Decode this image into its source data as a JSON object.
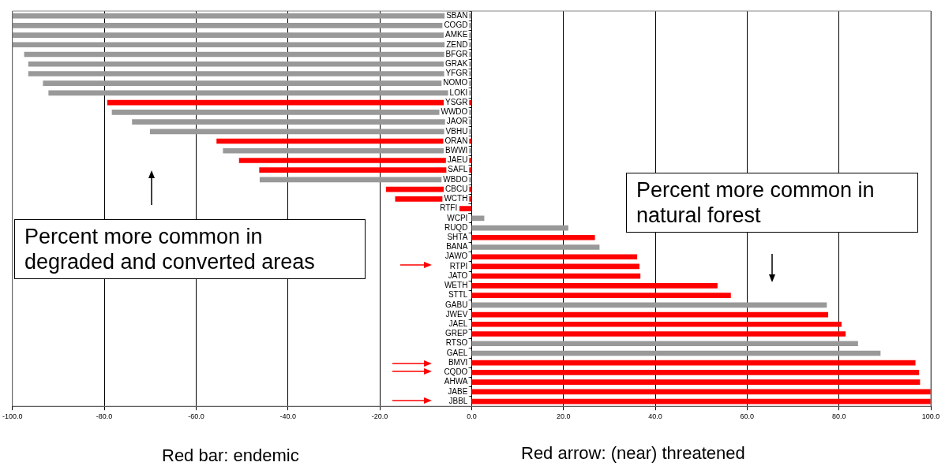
{
  "chart_data": {
    "type": "bar",
    "orientation": "horizontal",
    "categories": [
      "SBAN",
      "COGD",
      "AMKE",
      "ZEND",
      "BFGR",
      "GRAK",
      "YFGR",
      "NOMO",
      "LOKI",
      "YSGR",
      "WWDO",
      "JAOR",
      "VBHU",
      "ORAN",
      "BWWI",
      "JAEU",
      "SAFL",
      "WBDO",
      "CBCU",
      "WCTH",
      "RTFI",
      "WCPI",
      "RUQD",
      "SHTA",
      "BANA",
      "JAWO",
      "RTPI",
      "JATO",
      "WETH",
      "STTL",
      "GABU",
      "JWEV",
      "JAEL",
      "GREP",
      "RTSO",
      "GAEL",
      "BMVI",
      "CQDO",
      "AHWA",
      "JABE",
      "JBBL"
    ],
    "values": [
      -100,
      -100,
      -100,
      -100,
      -97.4,
      -96.5,
      -96.5,
      -93.3,
      -92.1,
      -79.3,
      -78.3,
      -73.9,
      -70,
      -55.5,
      -54.1,
      -50.6,
      -46.2,
      -46.1,
      -18.6,
      -16.6,
      -2.6,
      2.7,
      21,
      26.8,
      27.8,
      36,
      36.5,
      36.7,
      53.5,
      56.4,
      77.3,
      77.6,
      80.5,
      81.4,
      84.1,
      89,
      96.6,
      97.4,
      97.6,
      100,
      100
    ],
    "colors": [
      "#999999",
      "#999999",
      "#999999",
      "#999999",
      "#999999",
      "#999999",
      "#999999",
      "#999999",
      "#999999",
      "#ff0000",
      "#999999",
      "#999999",
      "#999999",
      "#ff0000",
      "#999999",
      "#ff0000",
      "#ff0000",
      "#999999",
      "#ff0000",
      "#ff0000",
      "#ff0000",
      "#999999",
      "#999999",
      "#ff0000",
      "#999999",
      "#ff0000",
      "#ff0000",
      "#ff0000",
      "#ff0000",
      "#ff0000",
      "#999999",
      "#ff0000",
      "#ff0000",
      "#ff0000",
      "#999999",
      "#999999",
      "#ff0000",
      "#ff0000",
      "#ff0000",
      "#ff0000",
      "#ff0000"
    ],
    "xlim": [
      -100,
      100
    ],
    "xticks": [
      {
        "value": -100,
        "label": "-100.0"
      },
      {
        "value": -80,
        "label": "-80.0"
      },
      {
        "value": -60,
        "label": "-60.0"
      },
      {
        "value": -40,
        "label": "-40.0"
      },
      {
        "value": -20,
        "label": "-20.0"
      },
      {
        "value": 0,
        "label": "0.0"
      },
      {
        "value": 20,
        "label": "20.0"
      },
      {
        "value": 40,
        "label": "40.0"
      },
      {
        "value": 60,
        "label": "60.0"
      },
      {
        "value": 80,
        "label": "80.0"
      },
      {
        "value": 100,
        "label": "100.0"
      }
    ],
    "grid": "x",
    "legend": false,
    "annotations": [
      "Percent more common in degraded and converted areas",
      "Percent more common in natural forest",
      "Red bar: endemic",
      "Red arrow: (near) threatened"
    ]
  }
}
